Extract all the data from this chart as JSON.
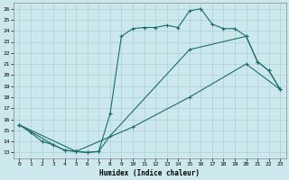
{
  "xlabel": "Humidex (Indice chaleur)",
  "bg_color": "#cce8ec",
  "grid_color": "#b0d4d8",
  "line_color": "#1a6e6a",
  "xlim": [
    -0.5,
    23.5
  ],
  "ylim": [
    12.5,
    26.5
  ],
  "xticks": [
    0,
    1,
    2,
    3,
    4,
    5,
    6,
    7,
    8,
    9,
    10,
    11,
    12,
    13,
    14,
    15,
    16,
    17,
    18,
    19,
    20,
    21,
    22,
    23
  ],
  "yticks": [
    13,
    14,
    15,
    16,
    17,
    18,
    19,
    20,
    21,
    22,
    23,
    24,
    25,
    26
  ],
  "line1_x": [
    0,
    1,
    2,
    3,
    4,
    5,
    6,
    7,
    8,
    9,
    10,
    11,
    12,
    13,
    14,
    15,
    16,
    17,
    18,
    19,
    20,
    21,
    22,
    23
  ],
  "line1_y": [
    15.5,
    14.8,
    14.0,
    13.7,
    13.2,
    13.1,
    13.0,
    13.1,
    16.5,
    23.5,
    24.2,
    24.3,
    24.3,
    24.5,
    24.3,
    25.8,
    26.0,
    24.6,
    24.2,
    24.2,
    23.5,
    21.2,
    20.4,
    18.7
  ],
  "line2_x": [
    0,
    3,
    4,
    5,
    6,
    7,
    8,
    15,
    20,
    21,
    22,
    23
  ],
  "line2_y": [
    15.5,
    13.7,
    13.2,
    13.1,
    13.0,
    13.1,
    14.5,
    22.3,
    23.5,
    21.2,
    20.4,
    18.7
  ],
  "line3_x": [
    0,
    5,
    10,
    15,
    20,
    23
  ],
  "line3_y": [
    15.5,
    13.1,
    15.3,
    18.0,
    21.0,
    18.7
  ]
}
